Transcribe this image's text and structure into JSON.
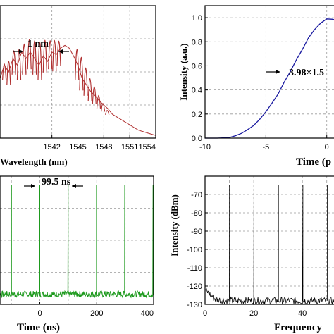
{
  "chart_data": [
    {
      "type": "line",
      "panel": "spectrum",
      "xlabel": "Wavelength (nm)",
      "ylabel": "",
      "xlim": [
        1536,
        1554
      ],
      "ylim": [
        0,
        1
      ],
      "x_ticks": [
        1542,
        1545,
        1548,
        1551,
        1554
      ],
      "grid": true,
      "line_color": "#b03030",
      "annotation": "1 nm",
      "series": [
        {
          "x": [
            1536,
            1536.5,
            1537,
            1537.5,
            1538,
            1538.5,
            1539,
            1539.5,
            1540,
            1540.5,
            1541,
            1541.5,
            1542,
            1542.5,
            1543,
            1543.5,
            1544,
            1544.5,
            1545,
            1545.5,
            1546,
            1546.5,
            1547,
            1547.5,
            1548,
            1548.5,
            1549,
            1549.5,
            1550,
            1550.5,
            1551,
            1551.5,
            1552,
            1552.5,
            1553,
            1553.5,
            1554
          ],
          "values": [
            0.45,
            0.55,
            0.5,
            0.6,
            0.55,
            0.65,
            0.6,
            0.65,
            0.6,
            0.55,
            0.62,
            0.58,
            0.65,
            0.63,
            0.68,
            0.7,
            0.68,
            0.62,
            0.55,
            0.45,
            0.4,
            0.35,
            0.32,
            0.28,
            0.25,
            0.22,
            0.18,
            0.16,
            0.14,
            0.12,
            0.1,
            0.08,
            0.06,
            0.05,
            0.04,
            0.03,
            0.02
          ]
        }
      ],
      "peaks_x": [
        1536.5,
        1537.0,
        1537.6,
        1538.2,
        1538.8,
        1539.4,
        1540.0,
        1540.6,
        1541.2,
        1541.8,
        1542.3,
        1542.8,
        1544.9,
        1545.4,
        1545.9,
        1546.4,
        1546.9,
        1547.4,
        1547.9,
        1548.4
      ],
      "peaks_y": [
        0.66,
        0.74,
        0.82,
        0.88,
        0.92,
        0.95,
        0.97,
        0.99,
        0.96,
        0.93,
        0.95,
        0.9,
        0.88,
        0.84,
        0.72,
        0.6,
        0.5,
        0.4,
        0.3,
        0.22
      ]
    },
    {
      "type": "line",
      "panel": "autocorrelation",
      "xlabel": "Time (p",
      "ylabel": "Intensity (a.u.)",
      "xlim": [
        -10,
        1
      ],
      "ylim": [
        0,
        1.1
      ],
      "x_ticks": [
        -10,
        -5,
        0
      ],
      "y_ticks": [
        0.0,
        0.2,
        0.4,
        0.6,
        0.8,
        1.0
      ],
      "grid": true,
      "line_color": "#1a1aa0",
      "annotation": "3.98×1.5",
      "series": [
        {
          "x": [
            -10,
            -9,
            -8,
            -7.5,
            -7,
            -6.5,
            -6,
            -5.5,
            -5,
            -4.5,
            -4,
            -3.5,
            -3,
            -2.5,
            -2,
            -1.5,
            -1,
            -0.5,
            0,
            0.5,
            1
          ],
          "values": [
            0,
            0,
            0.005,
            0.02,
            0.04,
            0.07,
            0.11,
            0.16,
            0.22,
            0.29,
            0.37,
            0.46,
            0.55,
            0.65,
            0.74,
            0.83,
            0.9,
            0.96,
            0.99,
            0.99,
            0.97
          ]
        }
      ]
    },
    {
      "type": "line",
      "panel": "pulse-train",
      "xlabel": "Time (ns)",
      "ylabel": "",
      "xlim": [
        -140,
        400
      ],
      "ylim": [
        0,
        1
      ],
      "x_ticks": [
        0,
        200,
        400
      ],
      "grid": true,
      "line_color": "#1e9a1e",
      "annotation": "99.5 ns",
      "pulses_x": [
        -99.5,
        0,
        99.5,
        199,
        298.5,
        398
      ],
      "baseline": 0.08
    },
    {
      "type": "line",
      "panel": "rf-spectrum",
      "xlabel": "Frequency",
      "ylabel": "Intensity (dBm)",
      "xlim": [
        0,
        55
      ],
      "ylim": [
        -130,
        -60
      ],
      "x_ticks": [
        0,
        20,
        40
      ],
      "y_ticks": [
        -130,
        -120,
        -110,
        -100,
        -90,
        -80,
        -70
      ],
      "grid": true,
      "line_color": "#000000",
      "peaks_x": [
        10.05,
        20.1,
        30.15,
        40.2,
        50.25
      ],
      "peaks_y": [
        -65,
        -65,
        -65,
        -65,
        -65
      ],
      "noise_floor": -126
    }
  ]
}
